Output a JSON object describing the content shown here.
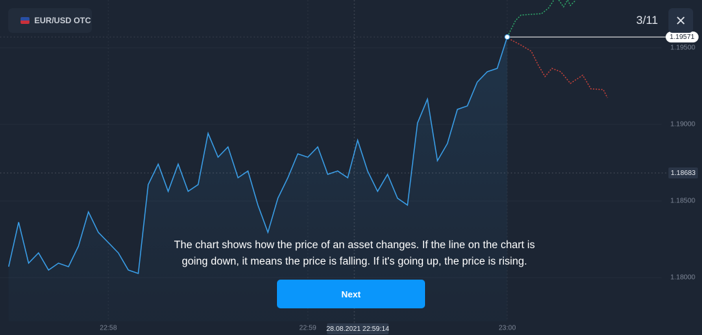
{
  "header": {
    "asset": "EUR/USD OTC",
    "step": "3/11"
  },
  "chart_data": {
    "type": "line",
    "color": "#3a9fe9",
    "x": [
      82650,
      82653,
      82656,
      82659,
      82662,
      82665,
      82668,
      82671,
      82674,
      82677,
      82680,
      82683,
      82686,
      82689,
      82692,
      82695,
      82698,
      82701,
      82704,
      82707,
      82710,
      82713,
      82716,
      82719,
      82722,
      82725,
      82728,
      82731,
      82734,
      82737,
      82740,
      82743,
      82746,
      82749,
      82752,
      82755,
      82758,
      82761,
      82764,
      82767,
      82770,
      82773,
      82776,
      82779,
      82782,
      82785,
      82788,
      82791,
      82794,
      82797,
      82800
    ],
    "values": [
      1.18071,
      1.18362,
      1.18094,
      1.18161,
      1.18049,
      1.18094,
      1.18071,
      1.18205,
      1.18429,
      1.18295,
      1.18228,
      1.18161,
      1.18049,
      1.18027,
      1.18607,
      1.18741,
      1.18563,
      1.18741,
      1.18563,
      1.18607,
      1.18942,
      1.18786,
      1.18853,
      1.18652,
      1.18696,
      1.18473,
      1.18295,
      1.18518,
      1.18652,
      1.18808,
      1.18786,
      1.18853,
      1.18674,
      1.18696,
      1.18652,
      1.18897,
      1.18696,
      1.18563,
      1.18674,
      1.18518,
      1.18473,
      1.19009,
      1.19165,
      1.18763,
      1.18875,
      1.19098,
      1.19121,
      1.19277,
      1.19344,
      1.19366,
      1.19571
    ],
    "xlim": [
      82647.4,
      82858.6
    ],
    "ylim": [
      1.17625,
      1.198125
    ],
    "xticks": [
      {
        "value": 82680,
        "label": "22:58"
      },
      {
        "value": 82740,
        "label": "22:59"
      },
      {
        "value": 82800,
        "label": "23:00"
      }
    ],
    "yticks": [
      {
        "value": 1.195,
        "label": "1.19500"
      },
      {
        "value": 1.19,
        "label": "1.19000"
      },
      {
        "value": 1.185,
        "label": "1.18500"
      },
      {
        "value": 1.18,
        "label": "1.18000"
      }
    ],
    "current_price": {
      "value": 1.19571,
      "label": "1.19571"
    },
    "crosshair": {
      "x": {
        "value": 82754,
        "label": "28.08.2021 22:59:14"
      },
      "y": {
        "value": 1.18683,
        "label": "1.18683"
      }
    },
    "grid": true
  },
  "tutorial": {
    "text": [
      "The chart shows how the price of an asset changes. If the line on the chart is",
      "going down, it means the price is falling. If it's going up, the price is rising."
    ],
    "button": "Next"
  }
}
